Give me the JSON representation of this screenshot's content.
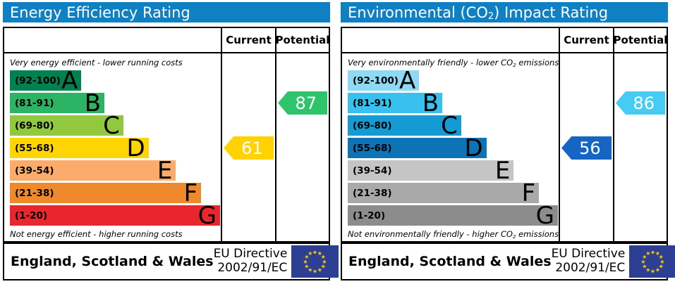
{
  "colors": {
    "header_bg": "#1080c4",
    "border": "#000000",
    "flag_bg": "#2c3f92",
    "flag_star": "#ffcc00",
    "arrow_text": "#ffffff"
  },
  "panels": [
    {
      "title": {
        "pre": "Energy Efficiency Rating",
        "sub": "",
        "post": ""
      },
      "columns": {
        "current": "Current",
        "potential": "Potential"
      },
      "top_note": {
        "pre": "Very energy efficient - lower running costs",
        "sub": "",
        "post": ""
      },
      "bottom_note": {
        "pre": "Not energy efficient - higher running costs",
        "sub": "",
        "post": ""
      },
      "bands": [
        {
          "range": "(92-100)",
          "letter": "A",
          "color": "#028150",
          "width_pct": 34
        },
        {
          "range": "(81-91)",
          "letter": "B",
          "color": "#2cb363",
          "width_pct": 45
        },
        {
          "range": "(69-80)",
          "letter": "C",
          "color": "#92c83e",
          "width_pct": 54
        },
        {
          "range": "(55-68)",
          "letter": "D",
          "color": "#ffd500",
          "width_pct": 66
        },
        {
          "range": "(39-54)",
          "letter": "E",
          "color": "#fbac6a",
          "width_pct": 79
        },
        {
          "range": "(21-38)",
          "letter": "F",
          "color": "#ef8a2c",
          "width_pct": 91
        },
        {
          "range": "(1-20)",
          "letter": "G",
          "color": "#e9262d",
          "width_pct": 100
        }
      ],
      "current": {
        "value": "61",
        "color": "#ffd200",
        "band_index": 3
      },
      "potential": {
        "value": "87",
        "color": "#2fc46c",
        "band_index": 1
      },
      "footer": {
        "region": "England, Scotland & Wales",
        "directive1": "EU Directive",
        "directive2": "2002/91/EC"
      }
    },
    {
      "title": {
        "pre": "Environmental (CO",
        "sub": "2",
        "post": ") Impact Rating"
      },
      "columns": {
        "current": "Current",
        "potential": "Potential"
      },
      "top_note": {
        "pre": "Very environmentally friendly - lower CO",
        "sub": "2",
        "post": " emissions"
      },
      "bottom_note": {
        "pre": "Not environmentally friendly - higher CO",
        "sub": "2",
        "post": " emissions"
      },
      "bands": [
        {
          "range": "(92-100)",
          "letter": "A",
          "color": "#8ed9f3",
          "width_pct": 34
        },
        {
          "range": "(81-91)",
          "letter": "B",
          "color": "#38c1ee",
          "width_pct": 45
        },
        {
          "range": "(69-80)",
          "letter": "C",
          "color": "#149bd4",
          "width_pct": 54
        },
        {
          "range": "(55-68)",
          "letter": "D",
          "color": "#0c73b6",
          "width_pct": 66
        },
        {
          "range": "(39-54)",
          "letter": "E",
          "color": "#c5c5c5",
          "width_pct": 79
        },
        {
          "range": "(21-38)",
          "letter": "F",
          "color": "#a9a9a9",
          "width_pct": 91
        },
        {
          "range": "(1-20)",
          "letter": "G",
          "color": "#8c8c8c",
          "width_pct": 100
        }
      ],
      "current": {
        "value": "56",
        "color": "#1566c4",
        "band_index": 3
      },
      "potential": {
        "value": "86",
        "color": "#45cbf4",
        "band_index": 1
      },
      "footer": {
        "region": "England, Scotland & Wales",
        "directive1": "EU Directive",
        "directive2": "2002/91/EC"
      }
    }
  ],
  "chart_data": [
    {
      "type": "bar",
      "title": "Energy Efficiency Rating",
      "categories": [
        "A (92-100)",
        "B (81-91)",
        "C (69-80)",
        "D (55-68)",
        "E (39-54)",
        "F (21-38)",
        "G (1-20)"
      ],
      "current": 61,
      "current_band": "D",
      "potential": 87,
      "potential_band": "B",
      "top_label": "Very energy efficient - lower running costs",
      "bottom_label": "Not energy efficient - higher running costs",
      "region": "England, Scotland & Wales",
      "directive": "EU Directive 2002/91/EC",
      "legend_position": "columns-right",
      "column_headers": [
        "Current",
        "Potential"
      ]
    },
    {
      "type": "bar",
      "title": "Environmental (CO2) Impact Rating",
      "categories": [
        "A (92-100)",
        "B (81-91)",
        "C (69-80)",
        "D (55-68)",
        "E (39-54)",
        "F (21-38)",
        "G (1-20)"
      ],
      "current": 56,
      "current_band": "D",
      "potential": 86,
      "potential_band": "B",
      "top_label": "Very environmentally friendly - lower CO2 emissions",
      "bottom_label": "Not environmentally friendly - higher CO2 emissions",
      "region": "England, Scotland & Wales",
      "directive": "EU Directive 2002/91/EC",
      "legend_position": "columns-right",
      "column_headers": [
        "Current",
        "Potential"
      ]
    }
  ]
}
